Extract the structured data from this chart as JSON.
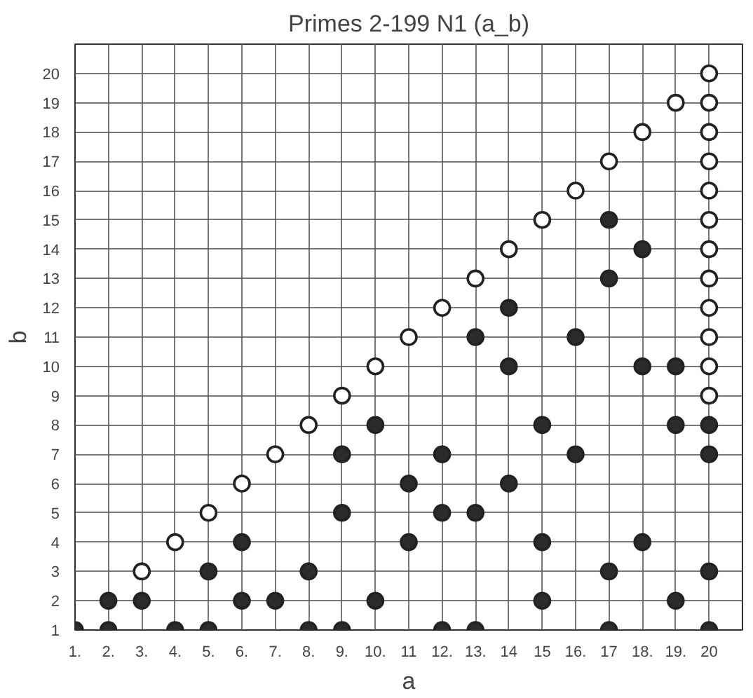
{
  "chart_data": {
    "type": "scatter",
    "title": "Primes 2-199 N1 (a_b)",
    "xlabel": "a",
    "ylabel": "b",
    "marker": "circle",
    "grid": true,
    "xlim": [
      1,
      21
    ],
    "ylim": [
      1,
      21
    ],
    "xticks": [
      {
        "value": 1,
        "label": "1."
      },
      {
        "value": 2,
        "label": "2."
      },
      {
        "value": 3,
        "label": "3."
      },
      {
        "value": 4,
        "label": "4."
      },
      {
        "value": 5,
        "label": "5."
      },
      {
        "value": 6,
        "label": "6."
      },
      {
        "value": 7,
        "label": "7."
      },
      {
        "value": 8,
        "label": "8."
      },
      {
        "value": 9,
        "label": "9."
      },
      {
        "value": 10,
        "label": "10."
      },
      11,
      {
        "value": 12,
        "label": "12."
      },
      {
        "value": 13,
        "label": "13."
      },
      14,
      15,
      {
        "value": 16,
        "label": "16."
      },
      17,
      {
        "value": 18,
        "label": "18."
      },
      {
        "value": 19,
        "label": "19."
      },
      20,
      {
        "value": 21,
        "label": null
      }
    ],
    "yticks": [
      1,
      2,
      3,
      4,
      5,
      6,
      7,
      8,
      9,
      10,
      11,
      12,
      13,
      14,
      15,
      16,
      17,
      18,
      19,
      20,
      {
        "value": 21,
        "label": null
      }
    ],
    "series": [
      {
        "color": "#2b2b2b",
        "x": [
          1,
          2,
          2,
          3,
          4,
          5,
          5,
          6,
          6,
          7,
          8,
          8,
          9,
          9,
          9,
          10,
          10,
          11,
          11,
          12,
          12,
          12,
          13,
          13,
          13,
          14,
          14,
          14,
          15,
          15,
          15,
          16,
          16,
          17,
          17,
          17,
          17,
          18,
          18,
          18,
          19,
          19,
          19,
          20,
          20,
          20,
          20
        ],
        "values": [
          1,
          1,
          2,
          2,
          1,
          1,
          3,
          2,
          4,
          2,
          1,
          3,
          1,
          5,
          7,
          2,
          8,
          4,
          6,
          1,
          5,
          7,
          1,
          5,
          11,
          6,
          10,
          12,
          2,
          4,
          8,
          7,
          11,
          1,
          3,
          13,
          15,
          4,
          10,
          14,
          2,
          8,
          10,
          1,
          3,
          7,
          8
        ]
      },
      {
        "color": "#ffffff",
        "x": [
          3,
          4,
          5,
          6,
          7,
          8,
          9,
          10,
          11,
          12,
          13,
          14,
          15,
          16,
          17,
          18,
          19,
          20,
          20,
          20,
          20,
          20,
          20,
          20,
          20,
          20,
          20,
          20,
          20
        ],
        "values": [
          3,
          4,
          5,
          6,
          7,
          8,
          9,
          10,
          11,
          12,
          13,
          14,
          15,
          16,
          17,
          18,
          19,
          9,
          10,
          11,
          12,
          13,
          14,
          15,
          16,
          17,
          18,
          19,
          20
        ]
      }
    ]
  }
}
